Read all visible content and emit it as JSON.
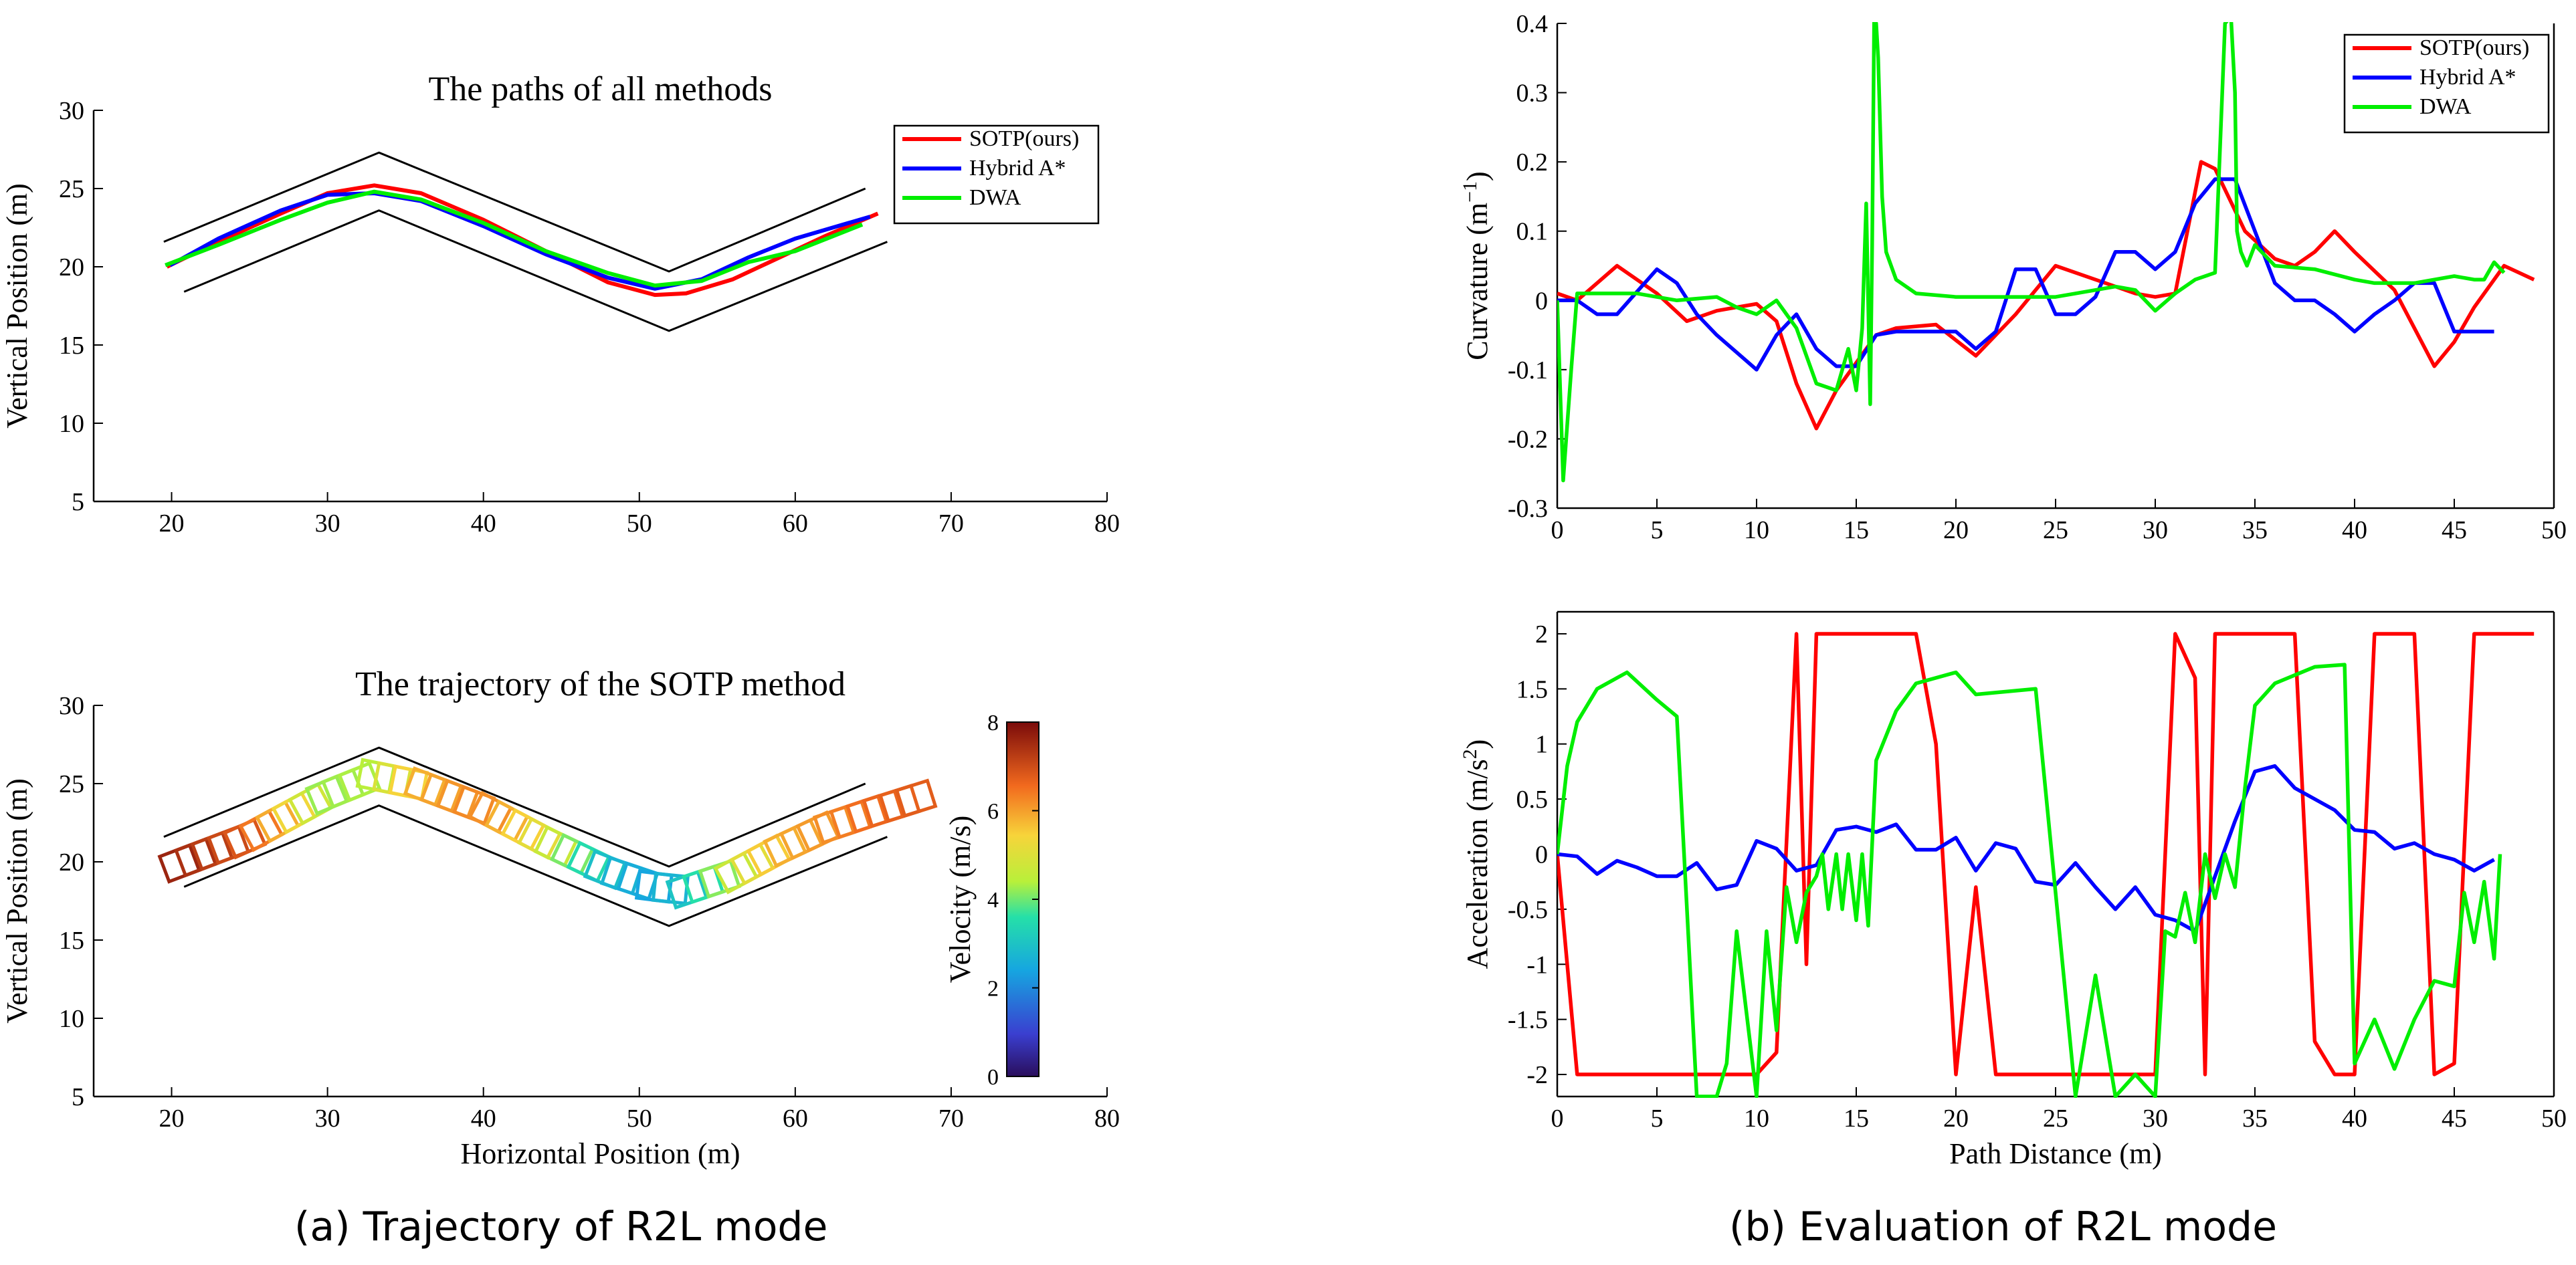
{
  "captions": {
    "left": "(a)  Trajectory of R2L mode",
    "right": "(b)  Evaluation of R2L mode"
  },
  "colors": {
    "sotp": "#ff0000",
    "hybrid": "#0000ff",
    "dwa": "#00ee00",
    "corridor": "#000000"
  },
  "chart_data": [
    {
      "id": "paths",
      "type": "line",
      "title": "The paths of all methods",
      "xlabel": "",
      "ylabel": "Vertical Position (m)",
      "xlim": [
        15,
        80
      ],
      "ylim": [
        5,
        30
      ],
      "xticks": [
        20,
        30,
        40,
        50,
        60,
        70,
        80
      ],
      "yticks": [
        5,
        10,
        15,
        20,
        25,
        30
      ],
      "legend": {
        "placement": "top-right",
        "entries": [
          "SOTP(ours)",
          "Hybrid A*",
          "DWA"
        ]
      },
      "corridor": [
        {
          "x": [
            19.5,
            33.3,
            51.9,
            64.5
          ],
          "y": [
            21.6,
            27.3,
            19.7,
            25.0
          ]
        },
        {
          "x": [
            20.8,
            33.3,
            51.9,
            65.9
          ],
          "y": [
            18.4,
            23.6,
            15.9,
            21.6
          ]
        }
      ],
      "series": [
        {
          "name": "SOTP(ours)",
          "color": "#ff0000",
          "x": [
            19.7,
            23,
            27,
            30,
            33,
            36,
            40,
            44,
            48,
            51,
            53,
            56,
            59,
            62,
            65.3
          ],
          "y": [
            20.0,
            21.6,
            23.4,
            24.7,
            25.2,
            24.7,
            23.0,
            21.0,
            19.0,
            18.2,
            18.3,
            19.2,
            20.6,
            22.0,
            23.4
          ]
        },
        {
          "name": "Hybrid A*",
          "color": "#0000ff",
          "x": [
            19.9,
            23,
            27,
            30,
            33,
            36,
            40,
            44,
            48,
            51,
            54,
            57,
            60,
            64.8
          ],
          "y": [
            20.1,
            21.8,
            23.6,
            24.6,
            24.7,
            24.2,
            22.6,
            20.8,
            19.3,
            18.6,
            19.2,
            20.6,
            21.8,
            23.2
          ]
        },
        {
          "name": "DWA",
          "color": "#00ee00",
          "x": [
            19.6,
            23,
            27,
            30,
            33,
            36,
            40,
            44,
            48,
            51,
            54,
            57,
            60,
            64.3
          ],
          "y": [
            20.1,
            21.4,
            23.0,
            24.1,
            24.8,
            24.3,
            22.8,
            21.0,
            19.6,
            18.8,
            19.1,
            20.3,
            21.0,
            22.7
          ]
        }
      ]
    },
    {
      "id": "trajectory",
      "type": "scatter",
      "title": "The trajectory of the SOTP method",
      "xlabel": "Horizontal Position (m)",
      "ylabel": "Vertical Position (m)",
      "xlim": [
        15,
        80
      ],
      "ylim": [
        5,
        30
      ],
      "xticks": [
        20,
        30,
        40,
        50,
        60,
        70,
        80
      ],
      "yticks": [
        5,
        10,
        15,
        20,
        25,
        30
      ],
      "corridor": [
        {
          "x": [
            19.5,
            33.3,
            51.9,
            64.5
          ],
          "y": [
            21.6,
            27.3,
            19.7,
            25.0
          ]
        },
        {
          "x": [
            20.8,
            33.3,
            51.9,
            65.9
          ],
          "y": [
            18.4,
            23.6,
            15.9,
            21.6
          ]
        }
      ],
      "path": {
        "x": [
          20.5,
          25,
          30,
          33,
          36,
          40,
          44,
          48,
          51,
          53,
          56,
          59,
          62,
          65,
          68.5
        ],
        "y": [
          19.9,
          21.6,
          24.3,
          25.5,
          24.9,
          23.4,
          21.3,
          19.4,
          18.4,
          18.2,
          19.2,
          20.8,
          22.2,
          23.2,
          24.3
        ]
      },
      "velocity": {
        "x": [
          20.5,
          25,
          30,
          33,
          36,
          40,
          44,
          48,
          51,
          53,
          56,
          59,
          62,
          65,
          68.5
        ],
        "v": [
          7.6,
          6.8,
          4.2,
          4.4,
          5.8,
          6.3,
          5.0,
          2.8,
          2.4,
          3.0,
          4.6,
          5.8,
          6.1,
          6.6,
          6.8
        ]
      },
      "colorbar": {
        "label": "Velocity (m/s)",
        "range": [
          0,
          8
        ],
        "ticks": [
          0,
          2,
          4,
          6,
          8
        ]
      }
    },
    {
      "id": "curvature",
      "type": "line",
      "title": "",
      "xlabel": "",
      "ylabel": "Curvature (m",
      "ylabel_sup": "−1",
      "ylabel_tail": ")",
      "xlim": [
        0,
        50
      ],
      "ylim": [
        -0.3,
        0.4
      ],
      "xticks": [
        0,
        5,
        10,
        15,
        20,
        25,
        30,
        35,
        40,
        45,
        50
      ],
      "yticks": [
        -0.3,
        -0.2,
        -0.1,
        0,
        0.1,
        0.2,
        0.3,
        0.4
      ],
      "legend": {
        "placement": "top-right",
        "entries": [
          "SOTP(ours)",
          "Hybrid A*",
          "DWA"
        ]
      },
      "series": [
        {
          "name": "SOTP(ours)",
          "color": "#ff0000",
          "x": [
            0,
            1,
            3,
            5,
            6.5,
            8,
            9,
            10,
            11,
            12,
            13,
            14,
            16,
            17,
            19,
            21,
            23,
            25,
            27,
            29,
            30,
            31,
            32.3,
            33,
            34.5,
            36,
            37,
            38,
            39,
            40,
            42,
            44,
            45,
            46,
            47.5,
            49
          ],
          "y": [
            0.01,
            0.0,
            0.05,
            0.01,
            -0.03,
            -0.015,
            -0.01,
            -0.005,
            -0.03,
            -0.12,
            -0.185,
            -0.13,
            -0.05,
            -0.04,
            -0.035,
            -0.08,
            -0.02,
            0.05,
            0.03,
            0.01,
            0.005,
            0.01,
            0.2,
            0.19,
            0.1,
            0.06,
            0.05,
            0.07,
            0.1,
            0.07,
            0.015,
            -0.095,
            -0.06,
            -0.01,
            0.05,
            0.03
          ]
        },
        {
          "name": "Hybrid A*",
          "color": "#0000ff",
          "x": [
            0,
            1,
            2,
            3,
            5,
            6,
            7,
            8,
            10,
            11,
            12,
            13,
            14,
            15,
            16,
            17,
            19,
            20,
            21,
            22,
            23,
            24,
            25,
            26,
            27,
            28,
            29,
            30,
            31,
            32,
            33,
            34,
            35,
            36,
            37,
            38,
            39,
            40,
            41,
            42,
            43,
            44,
            45,
            46,
            47
          ],
          "y": [
            0.0,
            0.0,
            -0.02,
            -0.02,
            0.045,
            0.025,
            -0.02,
            -0.05,
            -0.1,
            -0.05,
            -0.02,
            -0.07,
            -0.095,
            -0.095,
            -0.05,
            -0.045,
            -0.045,
            -0.045,
            -0.07,
            -0.045,
            0.045,
            0.045,
            -0.02,
            -0.02,
            0.005,
            0.07,
            0.07,
            0.045,
            0.07,
            0.14,
            0.175,
            0.175,
            0.1,
            0.025,
            0.0,
            0.0,
            -0.02,
            -0.045,
            -0.02,
            0.0,
            0.025,
            0.025,
            -0.045,
            -0.045,
            -0.045
          ]
        },
        {
          "name": "DWA",
          "color": "#00ee00",
          "x": [
            0,
            0.3,
            0.7,
            1,
            2,
            4,
            6,
            8,
            9,
            10,
            11,
            12,
            13,
            14,
            14.6,
            15,
            15.3,
            15.5,
            15.7,
            15.8,
            15.9,
            16.0,
            16.1,
            16.3,
            16.5,
            17,
            18,
            20,
            25,
            26,
            28,
            29,
            30,
            31,
            32,
            33,
            33.5,
            33.8,
            34,
            34.1,
            34.3,
            34.6,
            35,
            36,
            38,
            40,
            41,
            43,
            45,
            46,
            46.5,
            47,
            47.5
          ],
          "y": [
            0.0,
            -0.26,
            -0.1,
            0.01,
            0.01,
            0.01,
            0.0,
            0.005,
            -0.01,
            -0.02,
            0.0,
            -0.04,
            -0.12,
            -0.13,
            -0.07,
            -0.13,
            -0.04,
            0.14,
            -0.15,
            0.08,
            0.41,
            0.4,
            0.35,
            0.15,
            0.07,
            0.03,
            0.01,
            0.005,
            0.005,
            0.01,
            0.02,
            0.015,
            -0.015,
            0.01,
            0.03,
            0.04,
            0.4,
            0.41,
            0.3,
            0.1,
            0.07,
            0.05,
            0.08,
            0.05,
            0.045,
            0.03,
            0.025,
            0.025,
            0.035,
            0.03,
            0.03,
            0.055,
            0.04
          ]
        }
      ]
    },
    {
      "id": "acceleration",
      "type": "line",
      "title": "",
      "xlabel": "Path Distance (m)",
      "ylabel": "Acceleration (m/s",
      "ylabel_sup": "2",
      "ylabel_tail": ")",
      "xlim": [
        0,
        50
      ],
      "ylim": [
        -2.2,
        2.2
      ],
      "xticks": [
        0,
        5,
        10,
        15,
        20,
        25,
        30,
        35,
        40,
        45,
        50
      ],
      "yticks": [
        -2,
        -1.5,
        -1,
        -0.5,
        0,
        0.5,
        1,
        1.5,
        2
      ],
      "series": [
        {
          "name": "SOTP(ours)",
          "color": "#ff0000",
          "x": [
            0,
            1,
            10,
            11,
            12,
            12.5,
            13,
            18,
            19,
            20,
            21,
            22,
            30,
            31,
            32,
            32.5,
            33,
            37,
            38,
            39,
            40,
            41,
            43,
            44,
            45,
            46,
            49
          ],
          "y": [
            0.0,
            -2.0,
            -2.0,
            -1.8,
            2.0,
            -1.0,
            2.0,
            2.0,
            1.0,
            -2.0,
            -0.3,
            -2.0,
            -2.0,
            2.0,
            1.6,
            -2.0,
            2.0,
            2.0,
            -1.7,
            -2.0,
            -2.0,
            2.0,
            2.0,
            -2.0,
            -1.9,
            2.0,
            2.0
          ]
        },
        {
          "name": "Hybrid A*",
          "color": "#0000ff",
          "x": [
            0,
            1,
            2,
            3,
            4,
            5,
            6,
            7,
            8,
            9,
            10,
            11,
            12,
            13,
            14,
            15,
            16,
            17,
            18,
            19,
            20,
            21,
            22,
            23,
            24,
            25,
            26,
            27,
            28,
            29,
            30,
            31,
            32,
            33,
            34,
            35,
            36,
            37,
            38,
            39,
            40,
            41,
            42,
            43,
            44,
            45,
            46,
            47
          ],
          "y": [
            0.0,
            -0.02,
            -0.18,
            -0.06,
            -0.12,
            -0.2,
            -0.2,
            -0.08,
            -0.32,
            -0.28,
            0.12,
            0.05,
            -0.15,
            -0.1,
            0.22,
            0.25,
            0.2,
            0.27,
            0.04,
            0.04,
            0.15,
            -0.15,
            0.1,
            0.05,
            -0.25,
            -0.28,
            -0.08,
            -0.3,
            -0.5,
            -0.3,
            -0.55,
            -0.6,
            -0.7,
            -0.2,
            0.3,
            0.75,
            0.8,
            0.6,
            0.5,
            0.4,
            0.22,
            0.2,
            0.05,
            0.1,
            0.0,
            -0.05,
            -0.15,
            -0.05
          ]
        },
        {
          "name": "DWA",
          "color": "#00ee00",
          "x": [
            0,
            0.5,
            1,
            2,
            3.5,
            5,
            6,
            7,
            8,
            8.5,
            9,
            10,
            10.5,
            11,
            11.5,
            12,
            12.5,
            13,
            13.3,
            13.6,
            14,
            14.3,
            14.6,
            15,
            15.3,
            15.6,
            16,
            17,
            18,
            20,
            21,
            24,
            26,
            27,
            28,
            29,
            30,
            30.5,
            31,
            31.5,
            32,
            32.5,
            33,
            33.5,
            34,
            34.5,
            35,
            36,
            38,
            39.5,
            40,
            41,
            42,
            43,
            44,
            45,
            45.5,
            46,
            46.5,
            47,
            47.3
          ],
          "y": [
            0.0,
            0.8,
            1.2,
            1.5,
            1.65,
            1.4,
            1.25,
            -2.2,
            -2.2,
            -1.9,
            -0.7,
            -2.2,
            -0.7,
            -1.6,
            -0.3,
            -0.8,
            -0.35,
            -0.2,
            0.0,
            -0.5,
            0.0,
            -0.5,
            0.0,
            -0.6,
            0.0,
            -0.65,
            0.85,
            1.3,
            1.55,
            1.65,
            1.45,
            1.5,
            -2.2,
            -1.1,
            -2.2,
            -2.0,
            -2.2,
            -0.7,
            -0.75,
            -0.35,
            -0.8,
            0.0,
            -0.4,
            0.0,
            -0.3,
            0.6,
            1.35,
            1.55,
            1.7,
            1.72,
            -1.9,
            -1.5,
            -1.95,
            -1.5,
            -1.15,
            -1.2,
            -0.35,
            -0.8,
            -0.25,
            -0.95,
            0.0
          ]
        }
      ]
    }
  ]
}
